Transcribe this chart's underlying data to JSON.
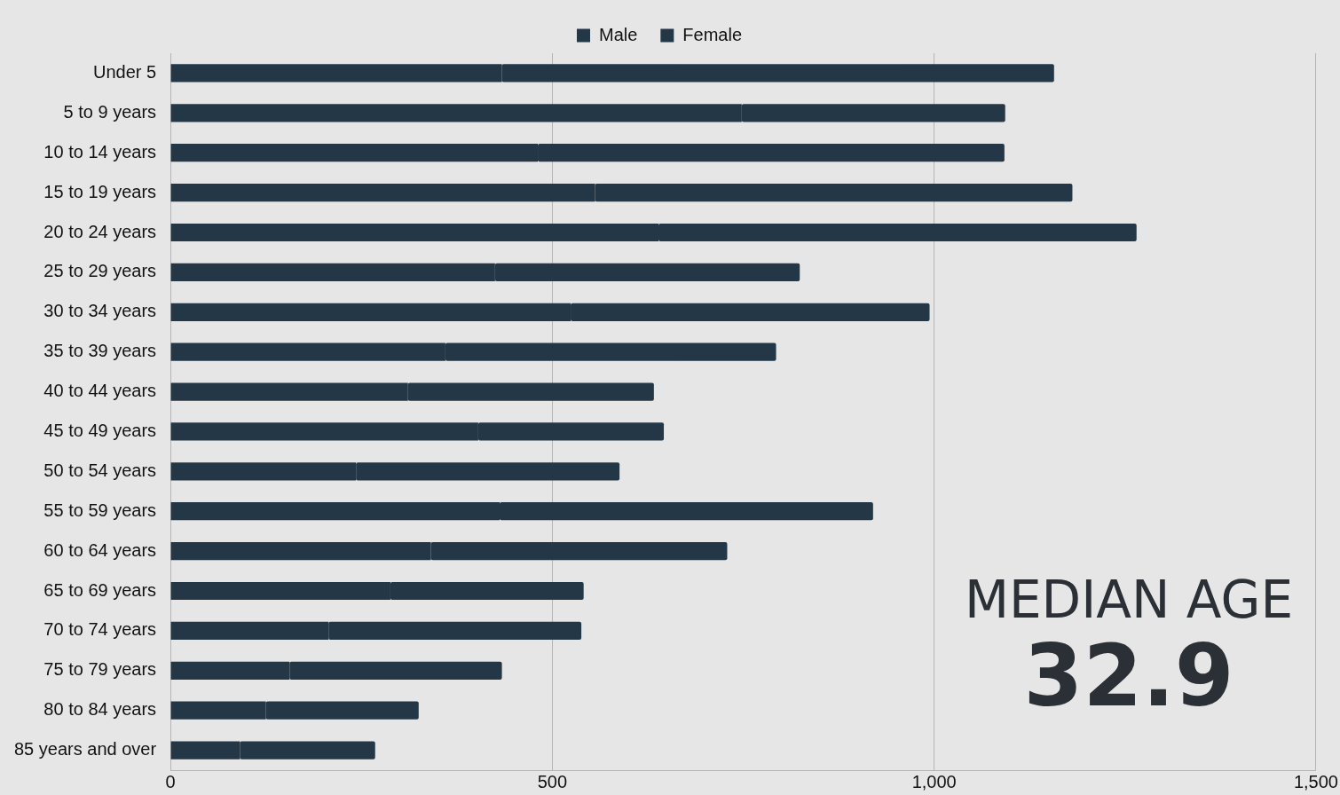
{
  "chart_data": {
    "type": "bar",
    "orientation": "horizontal",
    "stacked": true,
    "categories": [
      "Under 5",
      "5 to 9 years",
      "10 to 14 years",
      "15 to 19 years",
      "20 to 24 years",
      "25 to 29 years",
      "30 to 34 years",
      "35 to 39 years",
      "40 to 44 years",
      "45 to 49 years",
      "50 to 54 years",
      "55 to 59 years",
      "60 to 64 years",
      "65 to 69 years",
      "70 to 74 years",
      "75 to 79 years",
      "80 to 84 years",
      "85 years and over"
    ],
    "series": [
      {
        "name": "Male",
        "color": "#243746",
        "values": [
          434,
          748,
          481,
          556,
          639,
          425,
          524,
          360,
          311,
          403,
          243,
          431,
          341,
          288,
          207,
          156,
          125,
          91
        ]
      },
      {
        "name": "Female",
        "color": "#243746",
        "values": [
          723,
          345,
          611,
          625,
          626,
          399,
          470,
          433,
          322,
          243,
          345,
          489,
          388,
          253,
          331,
          278,
          200,
          177
        ]
      }
    ],
    "xlim": [
      0,
      1500
    ],
    "xticks": [
      0,
      500,
      {
        "value": 1000,
        "label": "1,000"
      },
      {
        "value": 1500,
        "label": "1,500"
      }
    ],
    "grid": "x",
    "legend": "top",
    "annotations": [
      "MEDIAN AGE",
      "32.9"
    ]
  }
}
